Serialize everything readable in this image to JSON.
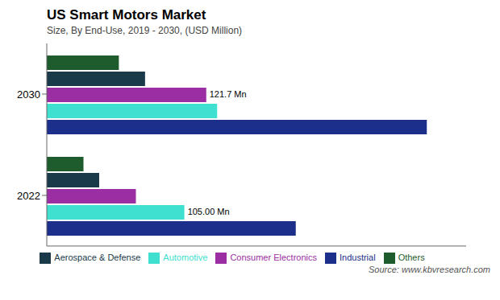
{
  "chart_data": {
    "type": "bar",
    "orientation": "horizontal",
    "title": "US Smart Motors Market",
    "subtitle": "Size, By End-Use, 2019 - 2030, (USD Million)",
    "source": "Source: www.kbvresearch.com",
    "categories": [
      "2030",
      "2022"
    ],
    "series": [
      {
        "name": "Others",
        "color": "#1e5c2e",
        "values": [
          55,
          28
        ]
      },
      {
        "name": "Aerospace & Defense",
        "color": "#1a3a4a",
        "values": [
          75,
          40
        ]
      },
      {
        "name": "Consumer Electronics",
        "color": "#9b2ea3",
        "values": [
          121.7,
          68
        ]
      },
      {
        "name": "Automotive",
        "color": "#40e0d0",
        "values": [
          130,
          105
        ]
      },
      {
        "name": "Industrial",
        "color": "#1c2f8a",
        "values": [
          290,
          190
        ]
      }
    ],
    "xlim": [
      0,
      320
    ],
    "annotations": [
      {
        "text": "121.7 Mn",
        "series": "Consumer Electronics",
        "category": "2030"
      },
      {
        "text": "105.00 Mn",
        "series": "Automotive",
        "category": "2022"
      }
    ],
    "legend": "bottom",
    "grid": false,
    "tick_labels": "y"
  }
}
